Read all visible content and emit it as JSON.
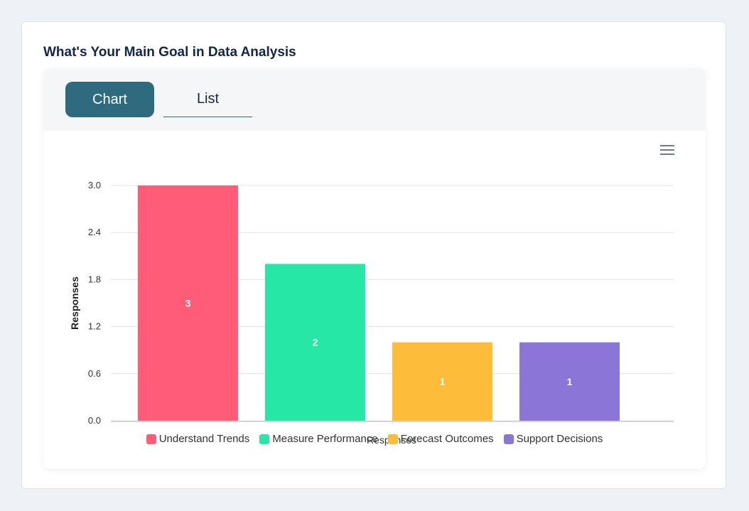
{
  "page": {
    "title": "What's Your Main Goal in Data Analysis"
  },
  "tabs": [
    {
      "label": "Chart",
      "active": true
    },
    {
      "label": "List",
      "active": false
    }
  ],
  "chart_data": {
    "type": "bar",
    "categories": [
      "Understand Trends",
      "Measure Performance",
      "Forecast Outcomes",
      "Support Decisions"
    ],
    "values": [
      3,
      2,
      1,
      1
    ],
    "colors": [
      "#ff5c77",
      "#26e7a6",
      "#febc3b",
      "#8b75d7"
    ],
    "title": "",
    "xlabel": "Responses",
    "ylabel": "Responses",
    "ylim": [
      0,
      3
    ],
    "yticks": [
      "0.0",
      "0.6",
      "1.2",
      "1.8",
      "2.4",
      "3.0"
    ],
    "grid": true,
    "legend": "bottom"
  },
  "menu_icon": "hamburger-menu-icon"
}
